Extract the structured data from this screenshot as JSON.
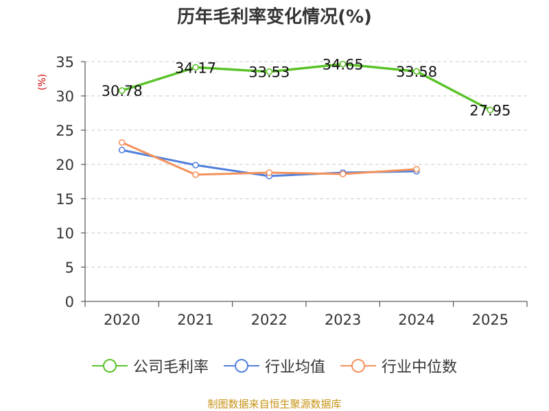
{
  "chart_data": {
    "type": "line",
    "title": "历年毛利率变化情况(%)",
    "ylabel": "(%)",
    "xlabel": "",
    "categories": [
      "2020",
      "2021",
      "2022",
      "2023",
      "2024",
      "2025"
    ],
    "ylim": [
      0,
      35
    ],
    "yticks": [
      0,
      5,
      10,
      15,
      20,
      25,
      30,
      35
    ],
    "grid": true,
    "series": [
      {
        "name": "公司毛利率",
        "color": "#5bc22a",
        "values": [
          30.78,
          34.17,
          33.53,
          34.65,
          33.58,
          27.95
        ],
        "labels": [
          "30.78",
          "34.17",
          "33.53",
          "34.65",
          "33.58",
          "27.95"
        ]
      },
      {
        "name": "行业均值",
        "color": "#4f7fdc",
        "values": [
          22.1,
          19.9,
          18.3,
          18.8,
          19.0,
          null
        ]
      },
      {
        "name": "行业中位数",
        "color": "#f4915a",
        "values": [
          23.2,
          18.5,
          18.8,
          18.6,
          19.3,
          null
        ]
      }
    ],
    "legend_position": "bottom",
    "source": "制图数据来自恒生聚源数据库"
  }
}
